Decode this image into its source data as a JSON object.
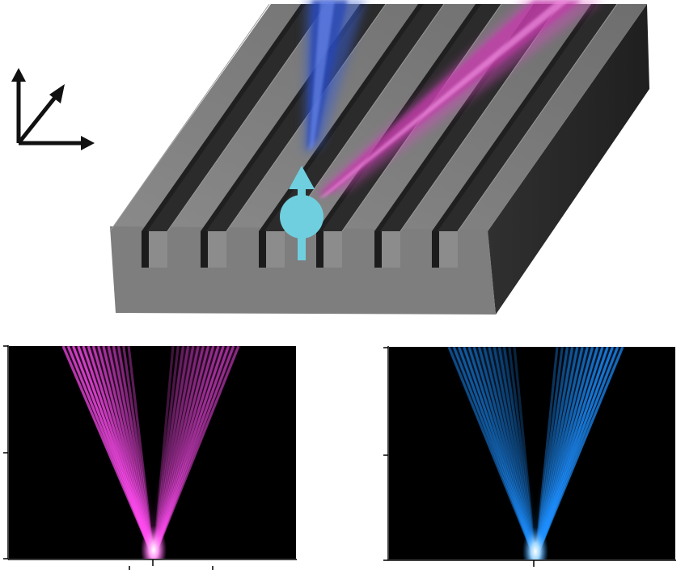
{
  "colors": {
    "background": "#ffffff",
    "block_face": "#7a7a7a",
    "block_front": "#808080",
    "block_side": "#2e2e2e",
    "groove_shadow": "#232323",
    "magenta_beam": "#d94fc4",
    "blue_beam": "#3a5fd0",
    "particle": "#6fcfdf",
    "plot_background": "#000000",
    "plot_left_color": "#ff4cf0",
    "plot_right_color": "#1e8fff",
    "axis_color": "#000000"
  },
  "icons": {
    "axes": "coordinate-axes-icon",
    "particle": "spin-up-particle-icon"
  },
  "grating": {
    "ridge_count": 7
  },
  "plots": [
    {
      "id": "left-fringe-plot",
      "color_key": "plot_left_color"
    },
    {
      "id": "right-fringe-plot",
      "color_key": "plot_right_color"
    }
  ]
}
